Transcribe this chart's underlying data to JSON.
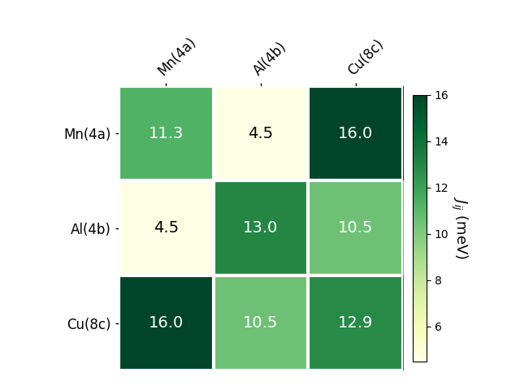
{
  "matrix": [
    [
      11.3,
      4.5,
      16.0
    ],
    [
      4.5,
      13.0,
      10.5
    ],
    [
      16.0,
      10.5,
      12.9
    ]
  ],
  "row_labels": [
    "Mn(4a)",
    "Al(4b)",
    "Cu(8c)"
  ],
  "col_labels": [
    "Mn(4a)",
    "Al(4b)",
    "Cu(8c)"
  ],
  "colorbar_label": "$J_{ij}$ (meV)",
  "vmin": 4.5,
  "vmax": 16.0,
  "cmap": "YlGn",
  "text_threshold": 10.0,
  "figsize": [
    6.4,
    4.8
  ],
  "dpi": 100,
  "white_linewidth": 3,
  "cell_fontsize": 14,
  "tick_fontsize": 12,
  "cbar_tick_fontsize": 10,
  "cbar_label_fontsize": 13
}
